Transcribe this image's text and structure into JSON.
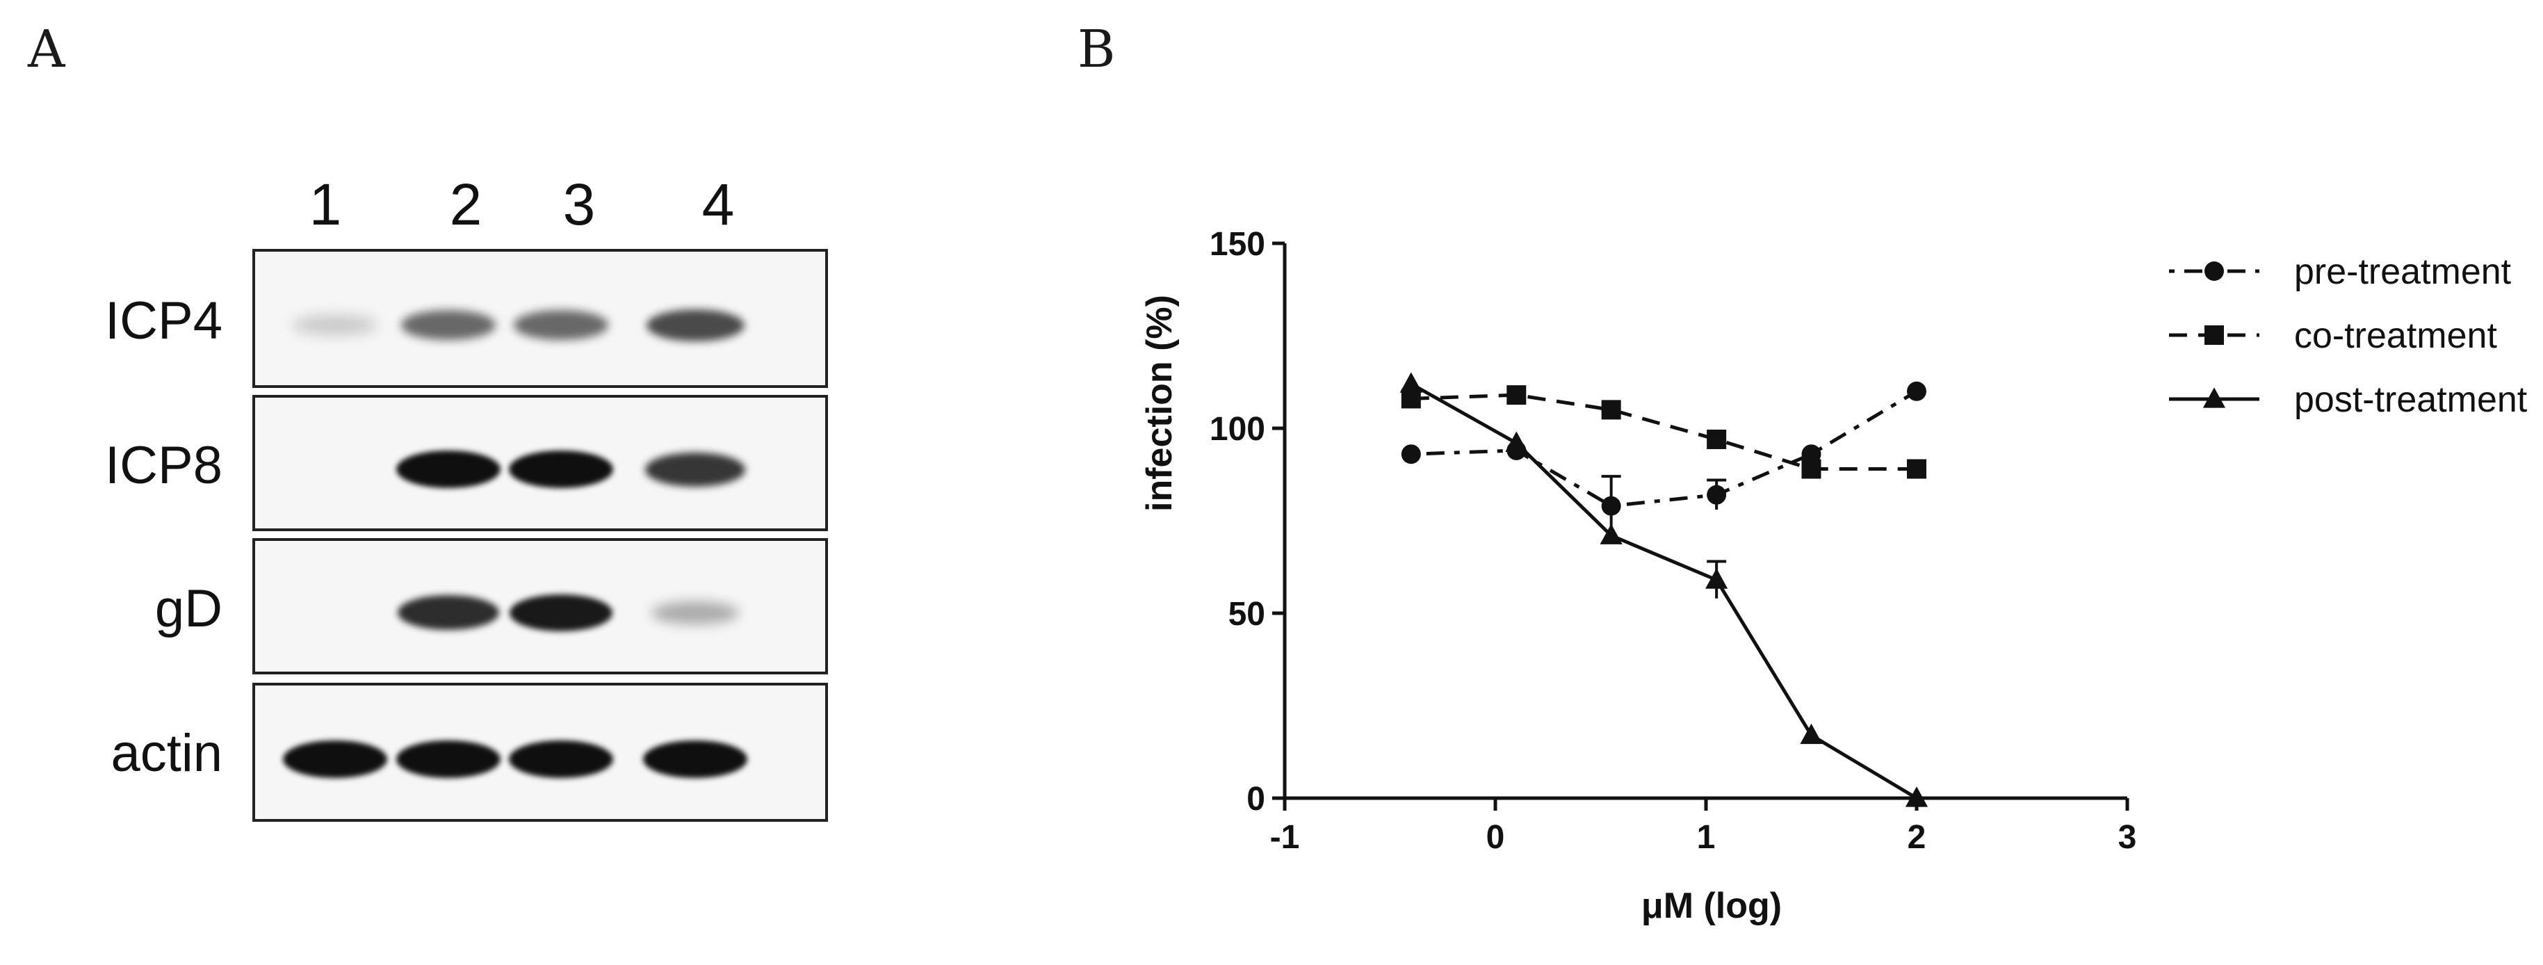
{
  "panels": {
    "a": "A",
    "b": "B"
  },
  "blot": {
    "lanes": [
      "1",
      "2",
      "3",
      "4"
    ],
    "rows": [
      {
        "label": "ICP4",
        "bands": [
          0.05,
          0.55,
          0.55,
          0.7
        ]
      },
      {
        "label": "ICP8",
        "bands": [
          0.0,
          1.0,
          1.0,
          0.8
        ]
      },
      {
        "label": "gD",
        "bands": [
          0.0,
          0.85,
          0.95,
          0.2
        ]
      },
      {
        "label": "actin",
        "bands": [
          1.0,
          1.0,
          1.0,
          1.0
        ]
      }
    ]
  },
  "chart_data": {
    "type": "line",
    "title": "",
    "xlabel": "μM (log)",
    "ylabel": "infection (%)",
    "xlim": [
      -1,
      3
    ],
    "ylim": [
      0,
      150
    ],
    "xticks": [
      "-1",
      "0",
      "1",
      "2",
      "3"
    ],
    "yticks": [
      "0",
      "50",
      "100",
      "150"
    ],
    "x": [
      -0.4,
      0.1,
      0.55,
      1.05,
      1.5,
      2.0
    ],
    "series": [
      {
        "name": "pre-treatment",
        "marker": "circle",
        "dash": "dashdot",
        "x": [
          -0.4,
          0.1,
          0.55,
          1.05,
          1.5,
          2.0
        ],
        "values": [
          93,
          94,
          79,
          82,
          93,
          110
        ],
        "errors": [
          0,
          0,
          8,
          4,
          0,
          0
        ]
      },
      {
        "name": "co-treatment",
        "marker": "square",
        "dash": "dashed",
        "x": [
          -0.4,
          0.1,
          0.55,
          1.05,
          1.5,
          2.0
        ],
        "values": [
          108,
          109,
          105,
          97,
          89,
          89
        ],
        "errors": [
          0,
          0,
          0,
          0,
          0,
          0
        ]
      },
      {
        "name": "post-treatment",
        "marker": "triangle",
        "dash": "solid",
        "x": [
          -0.4,
          0.1,
          0.55,
          1.05,
          1.5,
          2.0
        ],
        "values": [
          112,
          96,
          71,
          59,
          17,
          0
        ],
        "errors": [
          0,
          0,
          0,
          5,
          0,
          0
        ]
      }
    ],
    "legend": "top-right"
  }
}
